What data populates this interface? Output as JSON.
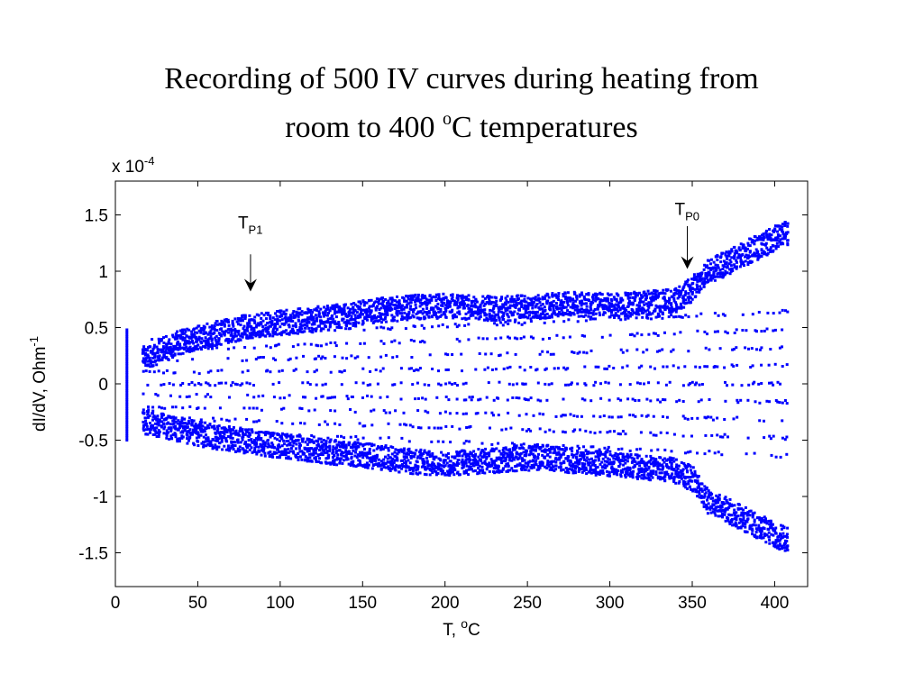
{
  "slide": {
    "title_line1": "Recording of 500 IV curves during heating from",
    "title_line2_pre": "room to 400 ",
    "title_line2_sup": "o",
    "title_line2_post": "C temperatures"
  },
  "chart_data": {
    "type": "scatter",
    "title": "",
    "xlabel": "T, °C",
    "xlabel_main": "T, ",
    "xlabel_sup": "o",
    "xlabel_post": "C",
    "ylabel": "dI/dV, Ohm^-1",
    "ylabel_main": "dI/dV, Ohm",
    "ylabel_sup": "-1",
    "y_multiplier_main": "x 10",
    "y_multiplier_exp": "-4",
    "xlim": [
      0,
      420
    ],
    "ylim": [
      -1.8,
      1.8
    ],
    "x_ticks": [
      0,
      50,
      100,
      150,
      200,
      250,
      300,
      350,
      400
    ],
    "x_tick_labels": [
      "0",
      "50",
      "100",
      "150",
      "200",
      "250",
      "300",
      "350",
      "400"
    ],
    "y_ticks": [
      -1.5,
      -1,
      -0.5,
      0,
      0.5,
      1,
      1.5
    ],
    "y_tick_labels": [
      "-1.5",
      "-1",
      "-0.5",
      "0",
      "0.5",
      "1",
      "1.5"
    ],
    "grid": false,
    "marker_color": "#0000ff",
    "y_unit_scale": "1e-4",
    "series": [
      {
        "x_range": [
          7,
          408
        ],
        "x": [
          7,
          20,
          40,
          60,
          80,
          100,
          120,
          140,
          160,
          180,
          200,
          220,
          240,
          260,
          280,
          300,
          320,
          340,
          350,
          360,
          380,
          400,
          408
        ],
        "upper_envelope": [
          0.45,
          0.35,
          0.48,
          0.55,
          0.62,
          0.65,
          0.68,
          0.72,
          0.76,
          0.79,
          0.8,
          0.78,
          0.78,
          0.8,
          0.82,
          0.8,
          0.82,
          0.85,
          0.95,
          1.1,
          1.25,
          1.4,
          1.45
        ],
        "lower_envelope": [
          -0.45,
          -0.45,
          -0.52,
          -0.58,
          -0.62,
          -0.66,
          -0.7,
          -0.73,
          -0.76,
          -0.8,
          -0.82,
          -0.8,
          -0.78,
          -0.76,
          -0.8,
          -0.82,
          -0.85,
          -0.88,
          -0.95,
          -1.15,
          -1.3,
          -1.45,
          -1.5
        ],
        "mid_levels": [
          -0.4,
          -0.3,
          -0.2,
          -0.1,
          0.0,
          0.1,
          0.2,
          0.3,
          0.4
        ]
      }
    ],
    "annotations": [
      {
        "label_main": "T",
        "label_sub": "P1",
        "x": 82,
        "y_text": 1.38,
        "arrow_from": 1.15,
        "arrow_to": 0.82
      },
      {
        "label_main": "T",
        "label_sub": "P0",
        "x": 347,
        "y_text": 1.5,
        "arrow_from": 1.4,
        "arrow_to": 1.02
      }
    ]
  }
}
